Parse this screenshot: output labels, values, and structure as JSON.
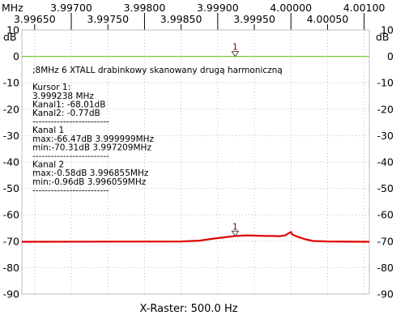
{
  "chart_data": {
    "type": "line",
    "x_unit_label": "MHz",
    "y_unit_label": "dB",
    "xlabel": "X-Raster: 500.0 Hz",
    "xlim": [
      3.996325,
      4.00107
    ],
    "ylim": [
      -90,
      10
    ],
    "x_ticks_top": [
      "3.99700",
      "3.99800",
      "3.99900",
      "4.00000",
      "4.00100"
    ],
    "x_ticks_top_values": [
      3.997,
      3.998,
      3.999,
      4.0,
      4.001
    ],
    "x_ticks_bottom": [
      "3.99650",
      "3.99750",
      "3.99850",
      "3.99950",
      "4.00050"
    ],
    "x_ticks_bottom_values": [
      3.9965,
      3.9975,
      3.9985,
      3.9995,
      4.0005
    ],
    "y_ticks": [
      "10",
      "0",
      "-10",
      "-20",
      "-30",
      "-40",
      "-50",
      "-60",
      "-70",
      "-80",
      "-90"
    ],
    "y_tick_values": [
      10,
      0,
      -10,
      -20,
      -30,
      -40,
      -50,
      -60,
      -70,
      -80,
      -90
    ],
    "grid": true,
    "series": [
      {
        "color": "#77cc33",
        "x": [
          3.996325,
          4.00107
        ],
        "y": [
          0,
          0
        ]
      },
      {
        "color": "#e00000",
        "x": [
          3.996325,
          3.9985,
          3.99875,
          3.99895,
          3.9991,
          3.99924,
          3.9994,
          3.99955,
          3.99965,
          3.99975,
          3.99985,
          3.99992,
          3.999999,
          4.00002,
          4.0001,
          4.0002,
          4.0003,
          4.0005,
          4.00107
        ],
        "y": [
          -70.2,
          -70.1,
          -69.8,
          -69.0,
          -68.5,
          -68.0,
          -67.8,
          -67.9,
          -68.0,
          -68.0,
          -68.1,
          -67.8,
          -66.5,
          -67.5,
          -68.4,
          -69.3,
          -69.9,
          -70.1,
          -70.2
        ]
      }
    ],
    "cursor": {
      "label": "1",
      "x": 3.999238,
      "y_top": 0,
      "y_bottom": -68.01
    },
    "annotation_lines": [
      ";8MHz 6 XTALL drabinkowy skanowany drugą harmoniczną",
      "",
      "Kursor 1:",
      "3.999238 MHz",
      "Kanal1: -68.01dB",
      "Kanal2: -0.77dB",
      "-------------------------",
      "Kanal 1",
      "max:-66.47dB 3.999999MHz",
      "min:-70.31dB 3.997209MHz",
      "-------------------------",
      "Kanal 2",
      "max:-0.58dB 3.996855MHz",
      "min:-0.96dB 3.996059MHz",
      "-------------------------"
    ]
  }
}
